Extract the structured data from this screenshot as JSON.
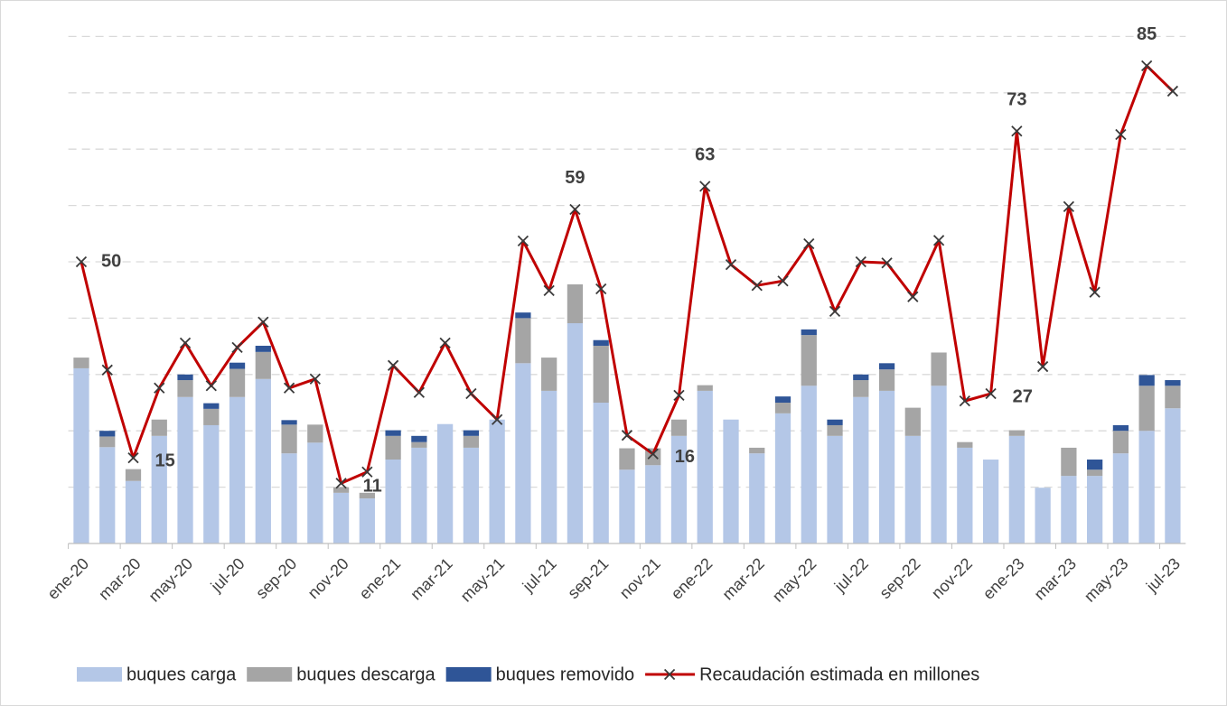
{
  "chart_data": {
    "type": "bar",
    "stacked": true,
    "categories": [
      "ene-20",
      null,
      "mar-20",
      null,
      "may-20",
      null,
      "jul-20",
      null,
      "sep-20",
      null,
      "nov-20",
      null,
      "ene-21",
      null,
      "mar-21",
      null,
      "may-21",
      null,
      "jul-21",
      null,
      "sep-21",
      null,
      "nov-21",
      null,
      "ene-22",
      null,
      "mar-22",
      null,
      "may-22",
      null,
      "jul-22",
      null,
      "sep-22",
      null,
      "nov-22",
      null,
      "ene-23",
      null,
      "mar-23",
      null,
      "may-23",
      null,
      "jul-23"
    ],
    "ylim": [
      0,
      92
    ],
    "yticks": [
      0,
      10,
      20,
      30,
      40,
      50,
      60,
      70,
      80,
      90
    ],
    "grid": true,
    "legend": "bottom",
    "series": [
      {
        "name": "buques carga",
        "type": "bar",
        "color": "#b4c7e7",
        "values": [
          31.1,
          17.1,
          11.1,
          19.1,
          26,
          21,
          26,
          29.2,
          16,
          17.9,
          9,
          8,
          14.9,
          17,
          21.2,
          17,
          22,
          32,
          27.1,
          39.1,
          25,
          13.1,
          13.9,
          19.1,
          27.1,
          22,
          16,
          23.1,
          28,
          19.1,
          26,
          27.1,
          19.1,
          28,
          17,
          14.9,
          19.1,
          9.9,
          12,
          12,
          16,
          20,
          24
        ]
      },
      {
        "name": "buques descarga",
        "type": "bar",
        "color": "#a5a5a5",
        "values": [
          1.9,
          1.9,
          2.1,
          2.9,
          3,
          2.9,
          5,
          4.8,
          5.1,
          3.2,
          1,
          1,
          4.2,
          1,
          0,
          2.1,
          0,
          8,
          5.9,
          6.9,
          10.1,
          3.8,
          3,
          2.9,
          1,
          0,
          1,
          1.9,
          9,
          1.9,
          3,
          3.8,
          5,
          5.9,
          1,
          0,
          1,
          0,
          5,
          1.1,
          4,
          8,
          4
        ]
      },
      {
        "name": "buques removido",
        "type": "bar",
        "color": "#2f5597",
        "values": [
          0,
          1,
          0,
          0,
          1,
          1,
          1.1,
          1.1,
          0.8,
          0,
          0,
          0,
          1,
          1.1,
          0,
          1,
          0,
          1,
          0,
          0,
          1,
          0,
          0,
          0,
          0,
          0,
          0,
          1.1,
          1,
          1,
          1,
          1.1,
          0,
          0,
          0,
          0,
          0,
          0,
          0,
          1.8,
          1,
          1.9,
          1
        ]
      },
      {
        "name": "Recaudación estimada en millones",
        "type": "line",
        "color": "#c00000",
        "values": [
          50,
          30.8,
          15.2,
          27.6,
          35.6,
          28,
          34.8,
          39.3,
          27.6,
          29.2,
          10.7,
          12.7,
          31.6,
          26.8,
          35.6,
          26.6,
          22,
          53.7,
          44.9,
          59.3,
          45.2,
          19.2,
          15.9,
          26.3,
          63.4,
          49.5,
          45.8,
          46.6,
          53.2,
          41.2,
          50,
          49.8,
          43.8,
          53.8,
          25.3,
          26.6,
          73.2,
          31.4,
          59.8,
          44.6,
          72.6,
          84.8,
          80.3
        ],
        "value_labels": [
          "50",
          null,
          "15",
          null,
          null,
          null,
          null,
          null,
          null,
          null,
          "11",
          null,
          null,
          null,
          null,
          null,
          null,
          null,
          null,
          "59",
          null,
          null,
          "16",
          null,
          "63",
          null,
          null,
          null,
          null,
          null,
          null,
          null,
          null,
          null,
          null,
          "27",
          "73",
          null,
          null,
          null,
          null,
          "85",
          null
        ]
      }
    ]
  }
}
